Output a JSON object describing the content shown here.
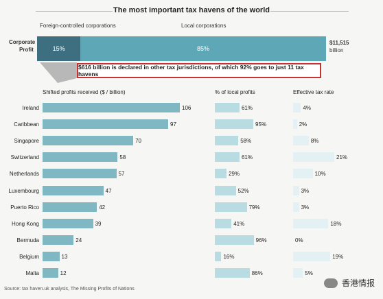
{
  "title": "The most important tax havens of the world",
  "top_bar": {
    "label_left": "Foreign-controlled corporations",
    "label_right": "Local corporations",
    "row_label_line1": "Corporate",
    "row_label_line2": "Profit",
    "foreign_pct": 15,
    "local_pct": 85,
    "foreign_label": "15%",
    "local_label": "85%",
    "total_line1": "$11,515",
    "total_line2": "billion"
  },
  "callout": "$616 billion is declared in other tax jurisdictions, of which 92% goes to just 11 tax havens",
  "colors": {
    "foreign": "#3d6f80",
    "local": "#5ea7b7",
    "bar_profit": "#7fb7c3",
    "bar_local": "#b9dbe2",
    "bar_tax": "#e4f1f4",
    "callout_border": "#c93030"
  },
  "chart_data": {
    "type": "bar",
    "categories": [
      "Ireland",
      "Caribbean",
      "Singapore",
      "Switzerland",
      "Netherlands",
      "Luxembourg",
      "Puerto Rico",
      "Hong Kong",
      "Bermuda",
      "Belgium",
      "Malta"
    ],
    "series": [
      {
        "name": "Shifted profits received ($ / billion)",
        "values": [
          106,
          97,
          70,
          58,
          57,
          47,
          42,
          39,
          24,
          13,
          12
        ],
        "labels": [
          "106",
          "97",
          "70",
          "58",
          "57",
          "47",
          "42",
          "39",
          "24",
          "13",
          "12"
        ]
      },
      {
        "name": "% of local profits",
        "values": [
          61,
          95,
          58,
          61,
          29,
          52,
          79,
          41,
          96,
          16,
          86
        ],
        "labels": [
          "61%",
          "95%",
          "58%",
          "61%",
          "29%",
          "52%",
          "79%",
          "41%",
          "96%",
          "16%",
          "86%"
        ]
      },
      {
        "name": "Effective tax rate",
        "values": [
          4,
          2,
          8,
          21,
          10,
          3,
          3,
          18,
          0,
          19,
          5
        ],
        "labels": [
          "4%",
          "2%",
          "8%",
          "21%",
          "10%",
          "3%",
          "3%",
          "18%",
          "0%",
          "19%",
          "5%"
        ]
      }
    ],
    "xlim": [
      [
        0,
        106
      ],
      [
        0,
        100
      ],
      [
        0,
        21
      ]
    ]
  },
  "source": "Source: tax haven.uk analysis, The Missing Profits of Nations",
  "watermark": "香港情报"
}
